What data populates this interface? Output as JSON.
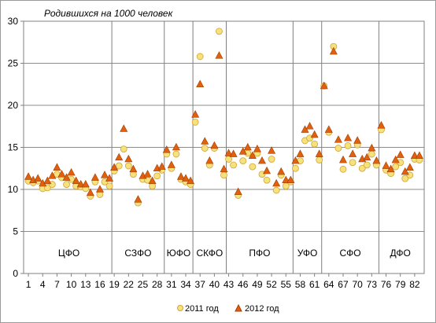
{
  "chart_data": {
    "type": "scatter",
    "ylabel": "Родившихся на 1000 человек",
    "ylim": [
      0,
      30
    ],
    "yticks": [
      0,
      5,
      10,
      15,
      20,
      25,
      30
    ],
    "xlim": [
      0,
      84
    ],
    "xtick_labels": [
      "1",
      "4",
      "7",
      "10",
      "13",
      "16",
      "19",
      "22",
      "25",
      "28",
      "31",
      "34",
      "37",
      "40",
      "43",
      "46",
      "49",
      "52",
      "55",
      "58",
      "61",
      "64",
      "67",
      "70",
      "73",
      "76",
      "79",
      "82"
    ],
    "grid": "horizontal",
    "legend_position": "bottom",
    "regions": [
      {
        "label": "ЦФО",
        "start": 1,
        "end": 18
      },
      {
        "label": "СЗФО",
        "start": 19,
        "end": 29
      },
      {
        "label": "ЮФО",
        "start": 30,
        "end": 35
      },
      {
        "label": "СКФО",
        "start": 36,
        "end": 42
      },
      {
        "label": "ПФО",
        "start": 43,
        "end": 56
      },
      {
        "label": "УФО",
        "start": 57,
        "end": 62
      },
      {
        "label": "СФО",
        "start": 63,
        "end": 74
      },
      {
        "label": "ДФО",
        "start": 75,
        "end": 83
      }
    ],
    "region_boundaries": [
      18.5,
      29.5,
      35.5,
      42.5,
      56.5,
      62.5,
      74.5
    ],
    "series": [
      {
        "name": "2011 год",
        "marker": "circle",
        "color": "#f5e27a",
        "stroke": "#d4a23a",
        "values": [
          11.0,
          10.8,
          11.0,
          10.1,
          10.2,
          10.6,
          11.8,
          11.4,
          10.6,
          11.2,
          10.4,
          10.3,
          10.1,
          9.2,
          10.9,
          9.4,
          10.9,
          10.4,
          12.2,
          12.8,
          14.8,
          12.8,
          11.8,
          8.4,
          11.2,
          11.1,
          10.4,
          11.6,
          12.3,
          14.2,
          12.5,
          14.2,
          11.2,
          10.9,
          10.6,
          18.0,
          25.8,
          14.9,
          12.9,
          14.9,
          28.8,
          11.7,
          13.6,
          12.9,
          9.3,
          13.4,
          14.3,
          12.7,
          14.3,
          11.8,
          11.1,
          13.6,
          9.9,
          11.7,
          10.4,
          10.9,
          12.5,
          13.4,
          15.8,
          16.1,
          15.4,
          13.5,
          22.3,
          16.8,
          27.0,
          14.9,
          12.4,
          15.2,
          13.2,
          15.3,
          12.5,
          12.9,
          14.2,
          12.9,
          17.1,
          12.3,
          11.9,
          12.7,
          13.2,
          11.3,
          11.7,
          13.6,
          13.5
        ]
      },
      {
        "name": "2012 год",
        "marker": "triangle",
        "color": "#e06010",
        "stroke": "#a04000",
        "values": [
          11.5,
          11.1,
          11.3,
          10.7,
          11.0,
          11.6,
          12.6,
          11.8,
          11.4,
          12.0,
          11.0,
          10.6,
          10.6,
          9.6,
          11.4,
          10.0,
          11.7,
          11.3,
          12.6,
          13.8,
          17.2,
          13.6,
          12.4,
          8.8,
          11.6,
          11.8,
          11.0,
          12.5,
          12.7,
          14.7,
          12.9,
          15.0,
          11.5,
          11.3,
          11.0,
          18.9,
          22.5,
          15.7,
          13.4,
          15.2,
          25.9,
          12.4,
          14.3,
          14.2,
          9.7,
          14.5,
          15.0,
          14.0,
          14.8,
          13.4,
          12.2,
          14.6,
          10.7,
          12.1,
          11.1,
          11.1,
          13.4,
          14.2,
          17.1,
          17.5,
          16.5,
          14.2,
          22.3,
          17.1,
          26.4,
          15.9,
          13.5,
          16.1,
          14.2,
          15.8,
          13.6,
          13.8,
          14.9,
          13.4,
          17.6,
          12.8,
          12.4,
          13.5,
          14.1,
          12.1,
          12.6,
          14.0,
          14.0
        ]
      }
    ]
  }
}
